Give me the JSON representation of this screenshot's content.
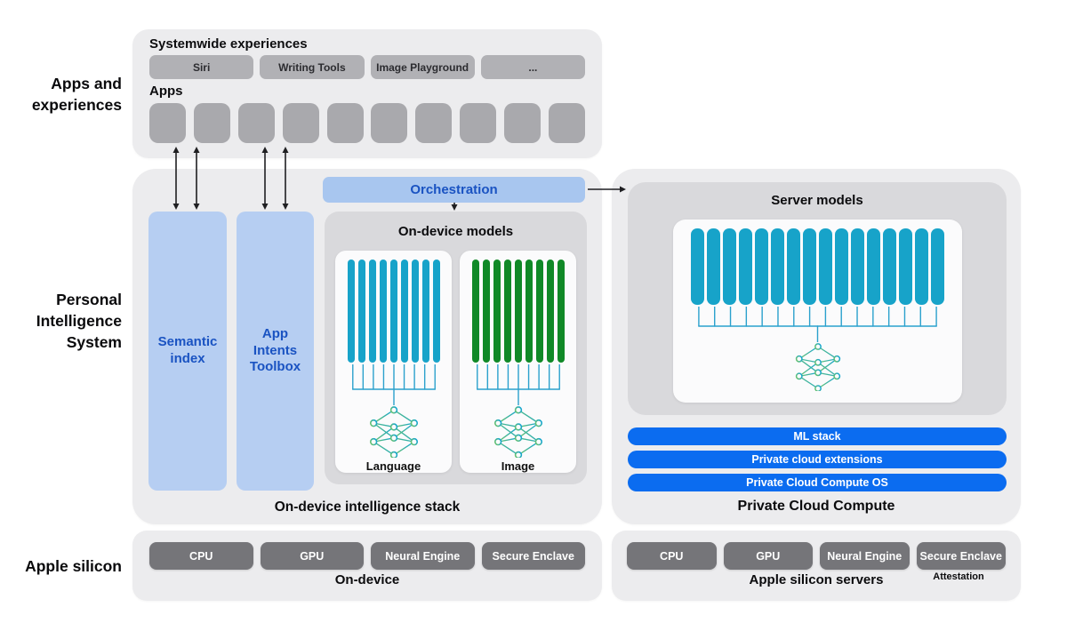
{
  "side_labels": {
    "apps_experiences": [
      "Apps and",
      "experiences"
    ],
    "personal_intelligence": [
      "Personal",
      "Intelligence",
      "System"
    ],
    "apple_silicon": [
      "Apple silicon"
    ]
  },
  "top_panel": {
    "systemwide_heading": "Systemwide experiences",
    "experience_buttons": [
      "Siri",
      "Writing Tools",
      "Image Playground",
      "..."
    ],
    "apps_heading": "Apps",
    "app_placeholder_count": 10
  },
  "on_device_stack": {
    "orchestration_label": "Orchestration",
    "semantic_index_label": "Semantic index",
    "app_intents_label": "App Intents Toolbox",
    "models_title": "On-device models",
    "models": [
      {
        "label": "Language",
        "bar_count": 9,
        "bar_color": "#17a3c9"
      },
      {
        "label": "Image",
        "bar_count": 9,
        "bar_color": "#108927"
      }
    ],
    "caption": "On-device intelligence stack"
  },
  "private_cloud": {
    "server_models_title": "Server models",
    "server_bar_count": 16,
    "server_bar_color": "#17a3c9",
    "layers": [
      "ML stack",
      "Private cloud extensions",
      "Private Cloud Compute OS"
    ],
    "caption": "Private Cloud Compute"
  },
  "apple_silicon_left": {
    "chips": [
      "CPU",
      "GPU",
      "Neural Engine",
      "Secure Enclave"
    ],
    "caption": "On-device"
  },
  "apple_silicon_right": {
    "chips": [
      "CPU",
      "GPU",
      "Neural Engine",
      "Secure Enclave"
    ],
    "caption": "Apple silicon servers",
    "attestation_label": "Attestation"
  },
  "icons": {
    "model_icon": "neural-network-icon",
    "fanin_icon": "fan-in-lines-icon",
    "arrows": "bidirectional-arrow-icon"
  },
  "colors": {
    "panel_gray": "#ececee",
    "inner_box_gray": "#d9d9dc",
    "card_white": "#fbfbfc",
    "button_gray": "#b1b1b5",
    "app_square_gray": "#a9a9ad",
    "chip_gray": "#757579",
    "light_blue": "#b6cef2",
    "orchestration_blue": "#a8c6ef",
    "blue_text": "#1a53c2",
    "accent_blue": "#0b6cf0",
    "teal_bar": "#17a3c9",
    "green_bar": "#108927",
    "comb_teal": "#2ba1cd",
    "nn_gradient_start": "#67c16c",
    "nn_gradient_end": "#12a5d4"
  }
}
